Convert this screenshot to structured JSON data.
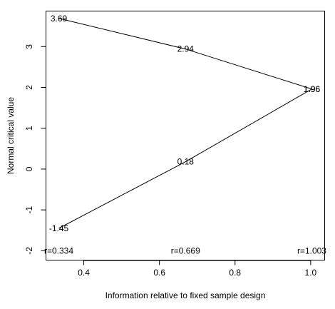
{
  "chart_data": {
    "type": "line",
    "title": "",
    "xlabel": "Information relative to fixed sample design",
    "ylabel": "Normal critical value",
    "xlim": [
      0.3,
      1.037
    ],
    "ylim": [
      -2.23,
      3.87
    ],
    "xticks": [
      0.4,
      0.6,
      0.8,
      1.0
    ],
    "xtick_labels": [
      "0.4",
      "0.6",
      "0.8",
      "1.0"
    ],
    "yticks": [
      -2,
      -1,
      0,
      1,
      2,
      3
    ],
    "ytick_labels": [
      "-2",
      "-1",
      "0",
      "1",
      "2",
      "3"
    ],
    "grid": false,
    "legend": "none",
    "series": [
      {
        "x": [
          0.334,
          0.669,
          1.003
        ],
        "y": [
          3.69,
          2.94,
          1.96
        ],
        "labels": [
          "3.69",
          "2.94",
          "1.96"
        ]
      },
      {
        "x": [
          0.334,
          0.669,
          1.003
        ],
        "y": [
          -1.45,
          0.18,
          1.96
        ],
        "labels": [
          "-1.45",
          "0.18",
          "1.96"
        ]
      }
    ],
    "annotations": {
      "y": -2.0,
      "items": [
        {
          "x": 0.334,
          "text": "r=0.334"
        },
        {
          "x": 0.669,
          "text": "r=0.669"
        },
        {
          "x": 1.003,
          "text": "r=1.003"
        }
      ]
    }
  }
}
